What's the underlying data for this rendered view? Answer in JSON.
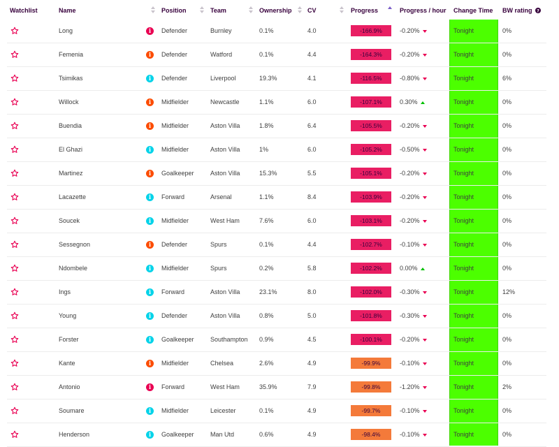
{
  "headers": {
    "watchlist": "Watchlist",
    "name": "Name",
    "position": "Position",
    "team": "Team",
    "ownership": "Ownership",
    "cv": "CV",
    "progress": "Progress",
    "progress_hour": "Progress / hour",
    "change_time": "Change Time",
    "bw_rating": "BW rating"
  },
  "colors": {
    "info_red": "#e90052",
    "info_orange": "#fc4c02",
    "info_cyan": "#06d3e9",
    "progress_pink": "#e91e63",
    "progress_orange": "#f47a3a",
    "change_green": "#4cff00",
    "star": "#e90052"
  },
  "rows": [
    {
      "name": "Long",
      "info_color": "#e90052",
      "position": "Defender",
      "team": "Burnley",
      "ownership": "0.1%",
      "cv": "4.0",
      "progress": "-166.9%",
      "progress_color": "#e91e63",
      "progress_hour": "-0.20%",
      "trend": "down",
      "change_time": "Tonight",
      "bw_rating": "0%"
    },
    {
      "name": "Femenia",
      "info_color": "#fc4c02",
      "position": "Defender",
      "team": "Watford",
      "ownership": "0.1%",
      "cv": "4.4",
      "progress": "-164.3%",
      "progress_color": "#e91e63",
      "progress_hour": "-0.20%",
      "trend": "down",
      "change_time": "Tonight",
      "bw_rating": "0%"
    },
    {
      "name": "Tsimikas",
      "info_color": "#06d3e9",
      "position": "Defender",
      "team": "Liverpool",
      "ownership": "19.3%",
      "cv": "4.1",
      "progress": "-116.5%",
      "progress_color": "#e91e63",
      "progress_hour": "-0.80%",
      "trend": "down",
      "change_time": "Tonight",
      "bw_rating": "6%"
    },
    {
      "name": "Willock",
      "info_color": "#fc4c02",
      "position": "Midfielder",
      "team": "Newcastle",
      "ownership": "1.1%",
      "cv": "6.0",
      "progress": "-107.1%",
      "progress_color": "#e91e63",
      "progress_hour": "0.30%",
      "trend": "up",
      "change_time": "Tonight",
      "bw_rating": "0%"
    },
    {
      "name": "Buendia",
      "info_color": "#fc4c02",
      "position": "Midfielder",
      "team": "Aston Villa",
      "ownership": "1.8%",
      "cv": "6.4",
      "progress": "-105.5%",
      "progress_color": "#e91e63",
      "progress_hour": "-0.20%",
      "trend": "down",
      "change_time": "Tonight",
      "bw_rating": "0%"
    },
    {
      "name": "El Ghazi",
      "info_color": "#06d3e9",
      "position": "Midfielder",
      "team": "Aston Villa",
      "ownership": "1%",
      "cv": "6.0",
      "progress": "-105.2%",
      "progress_color": "#e91e63",
      "progress_hour": "-0.50%",
      "trend": "down",
      "change_time": "Tonight",
      "bw_rating": "0%"
    },
    {
      "name": "Martinez",
      "info_color": "#fc4c02",
      "position": "Goalkeeper",
      "team": "Aston Villa",
      "ownership": "15.3%",
      "cv": "5.5",
      "progress": "-105.1%",
      "progress_color": "#e91e63",
      "progress_hour": "-0.20%",
      "trend": "down",
      "change_time": "Tonight",
      "bw_rating": "0%"
    },
    {
      "name": "Lacazette",
      "info_color": "#06d3e9",
      "position": "Forward",
      "team": "Arsenal",
      "ownership": "1.1%",
      "cv": "8.4",
      "progress": "-103.9%",
      "progress_color": "#e91e63",
      "progress_hour": "-0.20%",
      "trend": "down",
      "change_time": "Tonight",
      "bw_rating": "0%"
    },
    {
      "name": "Soucek",
      "info_color": "#06d3e9",
      "position": "Midfielder",
      "team": "West Ham",
      "ownership": "7.6%",
      "cv": "6.0",
      "progress": "-103.1%",
      "progress_color": "#e91e63",
      "progress_hour": "-0.20%",
      "trend": "down",
      "change_time": "Tonight",
      "bw_rating": "0%"
    },
    {
      "name": "Sessegnon",
      "info_color": "#fc4c02",
      "position": "Defender",
      "team": "Spurs",
      "ownership": "0.1%",
      "cv": "4.4",
      "progress": "-102.7%",
      "progress_color": "#e91e63",
      "progress_hour": "-0.10%",
      "trend": "down",
      "change_time": "Tonight",
      "bw_rating": "0%"
    },
    {
      "name": "Ndombele",
      "info_color": "#06d3e9",
      "position": "Midfielder",
      "team": "Spurs",
      "ownership": "0.2%",
      "cv": "5.8",
      "progress": "-102.2%",
      "progress_color": "#e91e63",
      "progress_hour": "0.00%",
      "trend": "up",
      "change_time": "Tonight",
      "bw_rating": "0%"
    },
    {
      "name": "Ings",
      "info_color": "#06d3e9",
      "position": "Forward",
      "team": "Aston Villa",
      "ownership": "23.1%",
      "cv": "8.0",
      "progress": "-102.0%",
      "progress_color": "#e91e63",
      "progress_hour": "-0.30%",
      "trend": "down",
      "change_time": "Tonight",
      "bw_rating": "12%"
    },
    {
      "name": "Young",
      "info_color": "#06d3e9",
      "position": "Defender",
      "team": "Aston Villa",
      "ownership": "0.8%",
      "cv": "5.0",
      "progress": "-101.8%",
      "progress_color": "#e91e63",
      "progress_hour": "-0.30%",
      "trend": "down",
      "change_time": "Tonight",
      "bw_rating": "0%"
    },
    {
      "name": "Forster",
      "info_color": "#06d3e9",
      "position": "Goalkeeper",
      "team": "Southampton",
      "ownership": "0.9%",
      "cv": "4.5",
      "progress": "-100.1%",
      "progress_color": "#e91e63",
      "progress_hour": "-0.20%",
      "trend": "down",
      "change_time": "Tonight",
      "bw_rating": "0%"
    },
    {
      "name": "Kante",
      "info_color": "#fc4c02",
      "position": "Midfielder",
      "team": "Chelsea",
      "ownership": "2.6%",
      "cv": "4.9",
      "progress": "-99.9%",
      "progress_color": "#f47a3a",
      "progress_hour": "-0.10%",
      "trend": "down",
      "change_time": "Tonight",
      "bw_rating": "0%"
    },
    {
      "name": "Antonio",
      "info_color": "#e90052",
      "position": "Forward",
      "team": "West Ham",
      "ownership": "35.9%",
      "cv": "7.9",
      "progress": "-99.8%",
      "progress_color": "#f47a3a",
      "progress_hour": "-1.20%",
      "trend": "down",
      "change_time": "Tonight",
      "bw_rating": "2%"
    },
    {
      "name": "Soumare",
      "info_color": "#06d3e9",
      "position": "Midfielder",
      "team": "Leicester",
      "ownership": "0.1%",
      "cv": "4.9",
      "progress": "-99.7%",
      "progress_color": "#f47a3a",
      "progress_hour": "-0.10%",
      "trend": "down",
      "change_time": "Tonight",
      "bw_rating": "0%"
    },
    {
      "name": "Henderson",
      "info_color": "#06d3e9",
      "position": "Goalkeeper",
      "team": "Man Utd",
      "ownership": "0.6%",
      "cv": "4.9",
      "progress": "-98.4%",
      "progress_color": "#f47a3a",
      "progress_hour": "-0.10%",
      "trend": "down",
      "change_time": "Tonight",
      "bw_rating": "0%"
    }
  ]
}
